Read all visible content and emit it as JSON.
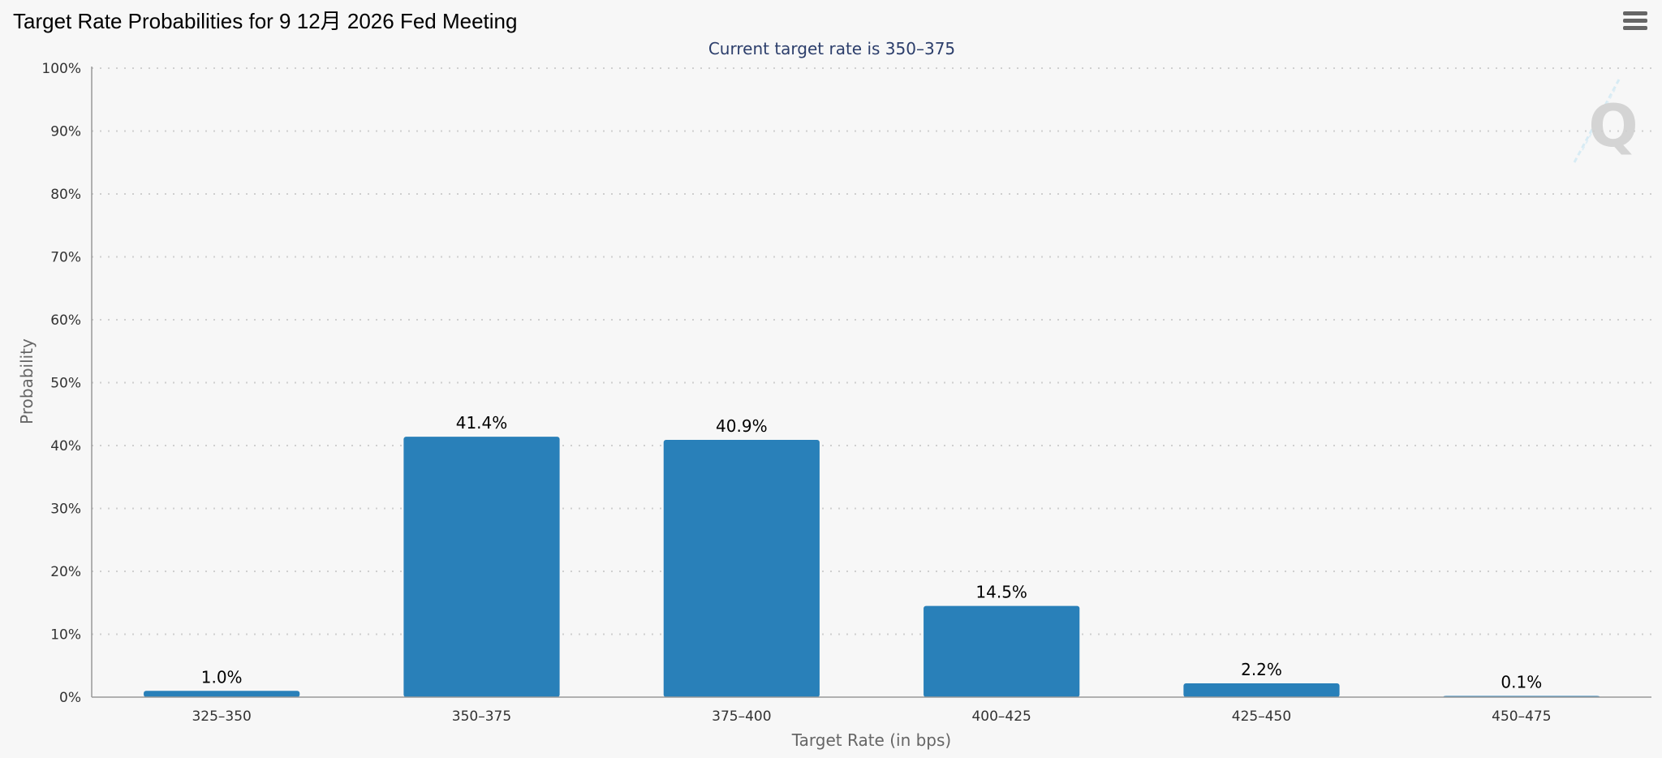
{
  "header": {
    "title": "Target Rate Probabilities for 9 12月 2026 Fed Meeting",
    "menu_icon": "hamburger-menu-icon",
    "watermark_icon": "quikstrike-logo-icon"
  },
  "chart_data": {
    "type": "bar",
    "title": "Target Rate Probabilities for 9 12月 2026 Fed Meeting",
    "subtitle": "Current target rate is 350–375",
    "xlabel": "Target Rate (in bps)",
    "ylabel": "Probability",
    "categories": [
      "325–350",
      "350–375",
      "375–400",
      "400–425",
      "425–450",
      "450–475"
    ],
    "values": [
      1.0,
      41.4,
      40.9,
      14.5,
      2.2,
      0.1
    ],
    "value_labels": [
      "1.0%",
      "41.4%",
      "40.9%",
      "14.5%",
      "2.2%",
      "0.1%"
    ],
    "ylim": [
      0,
      100
    ],
    "yticks": [
      "0%",
      "10%",
      "20%",
      "30%",
      "40%",
      "50%",
      "60%",
      "70%",
      "80%",
      "90%",
      "100%"
    ],
    "grid": "dotted horizontal",
    "colors": {
      "bar": "#2980b9",
      "subtitle": "#2c3e6b",
      "axis_text": "#333333"
    }
  }
}
